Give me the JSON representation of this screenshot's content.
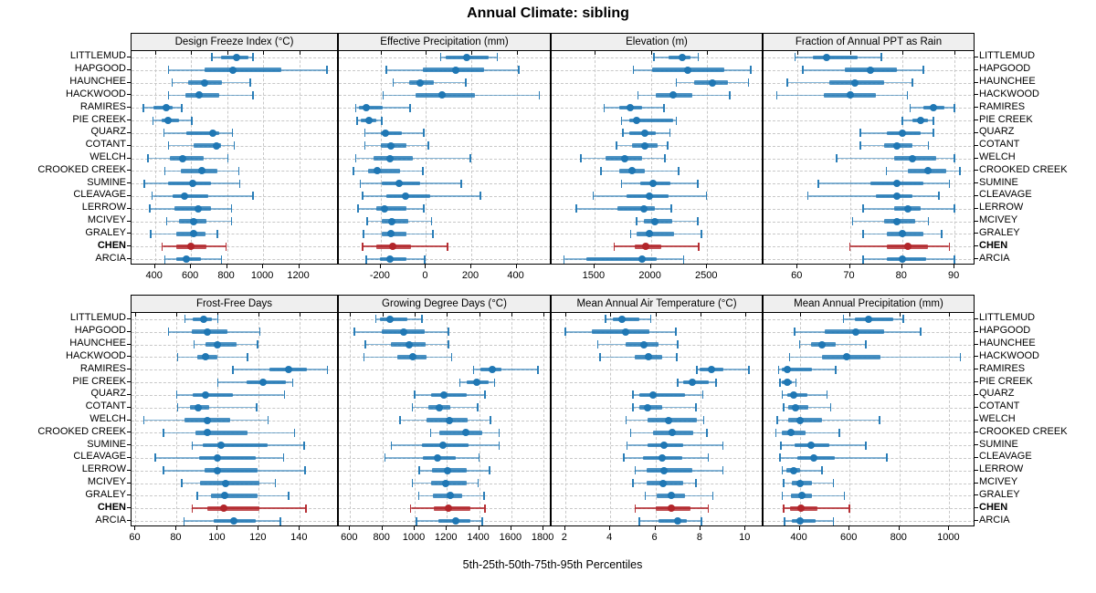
{
  "title": "Annual Climate: sibling",
  "caption": "5th-25th-50th-75th-95th Percentiles",
  "colors": {
    "series": "#1f77b4",
    "highlight": "#b2252a",
    "grid": "#c8c8c8",
    "strip_bg": "#efefef",
    "panel_border": "#000000",
    "background": "#ffffff",
    "text": "#000000"
  },
  "chart_data": {
    "type": "scatter",
    "variant": "multi-panel horizontal percentile dotplot (5th-25th-50th-75th-95th)",
    "legend_position": "none",
    "grid": "dashed",
    "highlight_site": "CHEN",
    "sites": [
      "LITTLEMUD",
      "HAPGOOD",
      "HAUNCHEE",
      "HACKWOOD",
      "RAMIRES",
      "PIE CREEK",
      "QUARZ",
      "COTANT",
      "WELCH",
      "CROOKED CREEK",
      "SUMINE",
      "CLEAVAGE",
      "LERROW",
      "MCIVEY",
      "GRALEY",
      "CHEN",
      "ARCIA"
    ],
    "panels": [
      {
        "title": "Design Freeze Index (°C)",
        "grid_row": 0,
        "grid_col": 0,
        "xlim": [
          270,
          1420
        ],
        "ticks": [
          400,
          600,
          800,
          1000,
          1200
        ],
        "percentiles": [
          [
            715,
            765,
            855,
            920,
            945
          ],
          [
            475,
            675,
            830,
            1100,
            1355
          ],
          [
            495,
            585,
            675,
            770,
            930
          ],
          [
            475,
            570,
            645,
            755,
            945
          ],
          [
            335,
            390,
            460,
            500,
            550
          ],
          [
            390,
            435,
            475,
            535,
            605
          ],
          [
            450,
            575,
            720,
            755,
            830
          ],
          [
            475,
            615,
            740,
            765,
            840
          ],
          [
            360,
            485,
            555,
            670,
            805
          ],
          [
            455,
            545,
            660,
            745,
            865
          ],
          [
            340,
            475,
            610,
            710,
            870
          ],
          [
            385,
            500,
            565,
            695,
            945
          ],
          [
            370,
            510,
            640,
            710,
            825
          ],
          [
            465,
            535,
            615,
            685,
            825
          ],
          [
            375,
            520,
            615,
            680,
            745
          ],
          [
            440,
            520,
            600,
            685,
            795
          ],
          [
            455,
            520,
            575,
            655,
            770
          ]
        ]
      },
      {
        "title": "Effective Precipitation (mm)",
        "grid_row": 0,
        "grid_col": 1,
        "xlim": [
          -385,
          555
        ],
        "ticks": [
          -200,
          0,
          200,
          400
        ],
        "percentiles": [
          [
            65,
            85,
            180,
            275,
            315
          ],
          [
            -175,
            -15,
            130,
            255,
            410
          ],
          [
            -145,
            -75,
            -25,
            35,
            175
          ],
          [
            -190,
            -45,
            70,
            215,
            500
          ],
          [
            -310,
            -295,
            -265,
            -190,
            -70
          ],
          [
            -305,
            -290,
            -250,
            -220,
            -195
          ],
          [
            -270,
            -200,
            -180,
            -105,
            -10
          ],
          [
            -270,
            -200,
            -155,
            -85,
            10
          ],
          [
            -310,
            -230,
            -160,
            -60,
            195
          ],
          [
            -320,
            -255,
            -215,
            -115,
            -15
          ],
          [
            -290,
            -195,
            -120,
            -25,
            155
          ],
          [
            -280,
            -175,
            -90,
            20,
            240
          ],
          [
            -300,
            -220,
            -185,
            -85,
            -10
          ],
          [
            -260,
            -195,
            -150,
            -80,
            25
          ],
          [
            -275,
            -195,
            -155,
            -85,
            30
          ],
          [
            -280,
            -220,
            -145,
            -65,
            95
          ],
          [
            -265,
            -205,
            -160,
            -85,
            -5
          ]
        ]
      },
      {
        "title": "Elevation (m)",
        "grid_row": 0,
        "grid_col": 2,
        "xlim": [
          1120,
          3000
        ],
        "ticks": [
          1500,
          2000,
          2500
        ],
        "percentiles": [
          [
            2030,
            2160,
            2280,
            2350,
            2420
          ],
          [
            1845,
            2015,
            2330,
            2650,
            2885
          ],
          [
            2225,
            2385,
            2550,
            2685,
            2865
          ],
          [
            1885,
            2040,
            2200,
            2365,
            2700
          ],
          [
            1585,
            1720,
            1820,
            1925,
            2115
          ],
          [
            1740,
            1805,
            1875,
            2195,
            2225
          ],
          [
            1750,
            1810,
            1945,
            2040,
            2170
          ],
          [
            1695,
            1830,
            1945,
            2060,
            2150
          ],
          [
            1380,
            1595,
            1765,
            1920,
            2125
          ],
          [
            1560,
            1720,
            1830,
            1945,
            2245
          ],
          [
            1740,
            1905,
            2020,
            2170,
            2415
          ],
          [
            1490,
            1785,
            1990,
            2160,
            2495
          ],
          [
            1340,
            1705,
            1935,
            2035,
            2180
          ],
          [
            1875,
            1935,
            2035,
            2190,
            2415
          ],
          [
            1820,
            1875,
            1990,
            2205,
            2450
          ],
          [
            1675,
            1855,
            1955,
            2095,
            2425
          ],
          [
            1230,
            1425,
            1920,
            2055,
            2290
          ]
        ]
      },
      {
        "title": "Fraction of Annual PPT as Rain",
        "grid_row": 0,
        "grid_col": 3,
        "xlim": [
          53.5,
          94
        ],
        "ticks": [
          60,
          70,
          80,
          90
        ],
        "percentiles": [
          [
            59.5,
            63,
            65.5,
            71.5,
            76
          ],
          [
            61,
            69,
            74,
            79,
            84
          ],
          [
            58,
            66,
            71,
            76.5,
            82
          ],
          [
            56,
            65,
            70,
            75,
            81
          ],
          [
            81.5,
            84,
            86,
            88,
            90
          ],
          [
            80,
            82,
            83.5,
            85,
            86
          ],
          [
            72,
            77,
            80,
            83.5,
            86
          ],
          [
            72,
            76.5,
            79,
            82,
            85
          ],
          [
            67.5,
            78.5,
            82,
            86.5,
            90
          ],
          [
            77,
            81,
            85,
            88.5,
            91
          ],
          [
            64,
            74,
            79,
            84,
            89
          ],
          [
            62,
            75,
            79,
            82,
            87
          ],
          [
            72.5,
            78.5,
            81,
            83.5,
            90
          ],
          [
            70.5,
            76.5,
            79,
            82.5,
            85
          ],
          [
            72.5,
            77,
            80,
            84,
            87.5
          ],
          [
            70,
            77,
            81,
            85,
            89
          ],
          [
            72.5,
            77,
            80,
            84.5,
            90
          ]
        ]
      },
      {
        "title": "Frost-Free Days",
        "grid_row": 1,
        "grid_col": 0,
        "xlim": [
          58,
          159
        ],
        "ticks": [
          60,
          80,
          100,
          120,
          140
        ],
        "percentiles": [
          [
            84,
            88,
            93,
            97,
            100
          ],
          [
            76,
            87.5,
            95,
            104.5,
            120.5
          ],
          [
            88.5,
            94,
            100,
            109,
            119.5
          ],
          [
            80.5,
            90,
            94,
            100,
            114.5
          ],
          [
            107.5,
            125,
            134.5,
            143.5,
            153.5
          ],
          [
            100,
            114,
            122,
            133,
            136.5
          ],
          [
            80,
            88,
            94,
            107.5,
            132.5
          ],
          [
            80.5,
            86.5,
            90.5,
            96,
            119
          ],
          [
            64,
            84,
            95,
            106,
            124.5
          ],
          [
            73.5,
            89,
            95,
            114.5,
            137.5
          ],
          [
            87.5,
            92.5,
            101.5,
            124.5,
            142
          ],
          [
            69.5,
            91,
            100,
            118.5,
            132
          ],
          [
            73.5,
            93.5,
            100,
            119.5,
            142.5
          ],
          [
            82.5,
            91.5,
            104,
            120.5,
            128
          ],
          [
            90,
            96.5,
            103.5,
            119.5,
            134.5
          ],
          [
            87.5,
            95,
            103,
            120.5,
            143
          ],
          [
            83.5,
            98,
            108,
            118.5,
            130.5
          ]
        ]
      },
      {
        "title": "Growing Degree Days (°C)",
        "grid_row": 1,
        "grid_col": 1,
        "xlim": [
          530,
          1850
        ],
        "ticks": [
          600,
          800,
          1000,
          1200,
          1400,
          1600,
          1800
        ],
        "percentiles": [
          [
            760,
            785,
            845,
            955,
            1045
          ],
          [
            625,
            795,
            935,
            1065,
            1210
          ],
          [
            695,
            855,
            965,
            1070,
            1210
          ],
          [
            685,
            890,
            990,
            1075,
            1230
          ],
          [
            1365,
            1410,
            1480,
            1540,
            1765
          ],
          [
            1280,
            1325,
            1385,
            1460,
            1495
          ],
          [
            1000,
            1100,
            1180,
            1325,
            1435
          ],
          [
            985,
            1085,
            1155,
            1220,
            1390
          ],
          [
            910,
            1075,
            1215,
            1330,
            1470
          ],
          [
            1100,
            1155,
            1320,
            1420,
            1525
          ],
          [
            855,
            1045,
            1175,
            1335,
            1525
          ],
          [
            815,
            1050,
            1140,
            1255,
            1400
          ],
          [
            1030,
            1110,
            1205,
            1325,
            1465
          ],
          [
            985,
            1105,
            1190,
            1325,
            1395
          ],
          [
            1025,
            1115,
            1220,
            1295,
            1430
          ],
          [
            975,
            1120,
            1210,
            1345,
            1435
          ],
          [
            1010,
            1145,
            1255,
            1345,
            1420
          ]
        ]
      },
      {
        "title": "Mean Annual Air Temperature (°C)",
        "grid_row": 1,
        "grid_col": 2,
        "xlim": [
          1.4,
          10.8
        ],
        "ticks": [
          2,
          4,
          6,
          8,
          10
        ],
        "percentiles": [
          [
            3.8,
            4.1,
            4.5,
            5.3,
            5.8
          ],
          [
            2.0,
            3.2,
            4.7,
            5.75,
            6.9
          ],
          [
            3.45,
            4.7,
            5.5,
            6.15,
            7.0
          ],
          [
            3.55,
            5.1,
            5.7,
            6.3,
            6.95
          ],
          [
            7.85,
            7.95,
            8.5,
            9.0,
            10.15
          ],
          [
            7.0,
            7.25,
            7.65,
            8.35,
            8.7
          ],
          [
            5.0,
            5.3,
            5.9,
            7.3,
            8.1
          ],
          [
            5.0,
            5.3,
            5.65,
            6.3,
            7.8
          ],
          [
            4.7,
            5.65,
            6.6,
            7.85,
            8.15
          ],
          [
            4.9,
            5.9,
            6.75,
            7.7,
            8.3
          ],
          [
            4.75,
            5.65,
            6.4,
            7.25,
            9.0
          ],
          [
            4.6,
            5.45,
            6.3,
            7.2,
            8.35
          ],
          [
            5.1,
            5.6,
            6.4,
            7.65,
            9.0
          ],
          [
            5.0,
            5.6,
            6.35,
            7.25,
            7.8
          ],
          [
            5.55,
            6.05,
            6.7,
            7.3,
            8.55
          ],
          [
            5.1,
            6.0,
            6.7,
            7.55,
            8.35
          ],
          [
            5.3,
            6.15,
            7.0,
            7.4,
            8.05
          ]
        ]
      },
      {
        "title": "Mean Annual Precipitation (mm)",
        "grid_row": 1,
        "grid_col": 3,
        "xlim": [
          255,
          1105
        ],
        "ticks": [
          400,
          600,
          800,
          1000
        ],
        "percentiles": [
          [
            575,
            620,
            675,
            775,
            815
          ],
          [
            380,
            500,
            625,
            740,
            885
          ],
          [
            400,
            445,
            490,
            545,
            665
          ],
          [
            360,
            490,
            590,
            725,
            1045
          ],
          [
            315,
            330,
            350,
            450,
            545
          ],
          [
            320,
            330,
            350,
            370,
            385
          ],
          [
            330,
            350,
            375,
            430,
            510
          ],
          [
            335,
            355,
            385,
            435,
            525
          ],
          [
            310,
            355,
            400,
            490,
            720
          ],
          [
            305,
            330,
            365,
            425,
            560
          ],
          [
            325,
            380,
            445,
            520,
            665
          ],
          [
            320,
            390,
            455,
            540,
            750
          ],
          [
            330,
            345,
            375,
            400,
            490
          ],
          [
            335,
            370,
            400,
            450,
            535
          ],
          [
            330,
            365,
            410,
            450,
            580
          ],
          [
            335,
            360,
            405,
            470,
            600
          ],
          [
            340,
            370,
            400,
            465,
            535
          ]
        ]
      }
    ]
  }
}
